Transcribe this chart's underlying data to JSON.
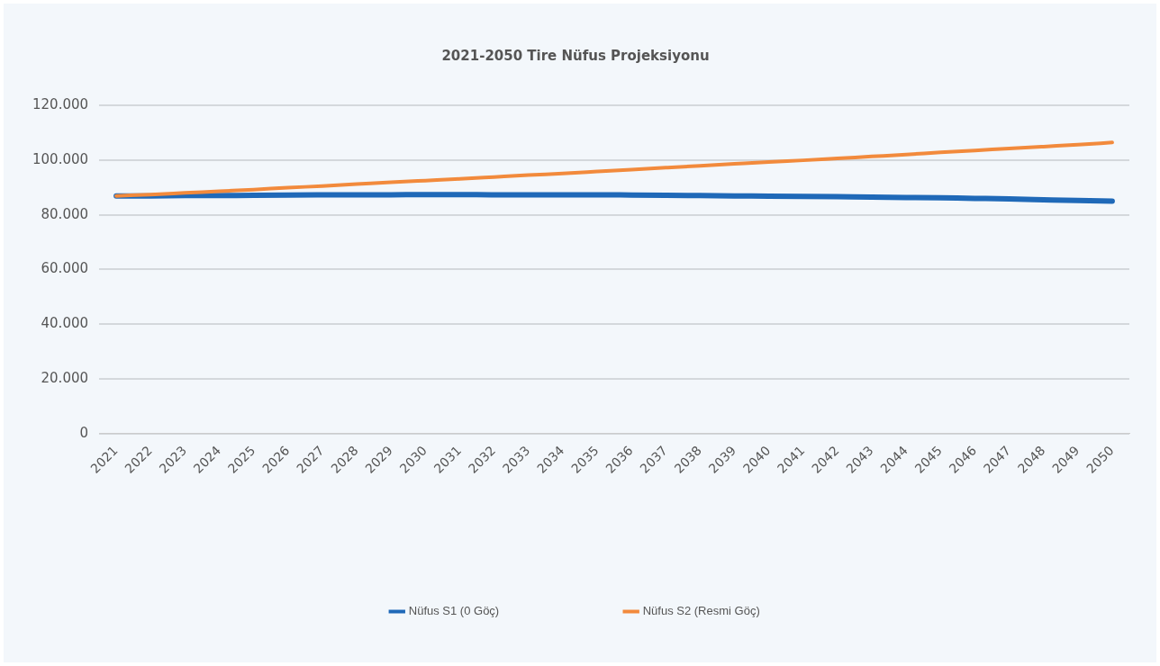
{
  "chart_data": {
    "type": "line",
    "title": "2021-2050 Tire Nüfus Projeksiyonu",
    "categories": [
      "2021",
      "2022",
      "2023",
      "2024",
      "2025",
      "2026",
      "2027",
      "2028",
      "2029",
      "2030",
      "2031",
      "2032",
      "2033",
      "2034",
      "2035",
      "2036",
      "2037",
      "2038",
      "2039",
      "2040",
      "2041",
      "2042",
      "2043",
      "2044",
      "2045",
      "2046",
      "2047",
      "2048",
      "2049",
      "2050"
    ],
    "series": [
      {
        "name": "Nüfus S1 (0 Göç)",
        "color": "#1f69b8",
        "values": [
          86900,
          86900,
          87000,
          87000,
          87100,
          87200,
          87300,
          87300,
          87300,
          87400,
          87400,
          87300,
          87300,
          87300,
          87300,
          87200,
          87100,
          87000,
          86900,
          86800,
          86700,
          86600,
          86500,
          86300,
          86200,
          86000,
          85800,
          85500,
          85200,
          85000
        ]
      },
      {
        "name": "Nüfus S2 (Resmi Göç)",
        "color": "#f28a3c",
        "values": [
          86900,
          87400,
          88000,
          88600,
          89200,
          89900,
          90500,
          91200,
          91900,
          92500,
          93100,
          93800,
          94500,
          95100,
          95800,
          96500,
          97200,
          97900,
          98600,
          99300,
          99900,
          100600,
          101300,
          102000,
          102800,
          103500,
          104200,
          104900,
          105600,
          106400
        ]
      }
    ],
    "ylim": [
      0,
      120000
    ],
    "yticks": [
      {
        "value": 0,
        "label": "0"
      },
      {
        "value": 20000,
        "label": "20.000"
      },
      {
        "value": 40000,
        "label": "40.000"
      },
      {
        "value": 60000,
        "label": "60.000"
      },
      {
        "value": 80000,
        "label": "80.000"
      },
      {
        "value": 100000,
        "label": "100.000"
      },
      {
        "value": 120000,
        "label": "120.000"
      }
    ],
    "grid": "y",
    "legend": "bottom",
    "marker": "none",
    "line_style": "solid"
  }
}
